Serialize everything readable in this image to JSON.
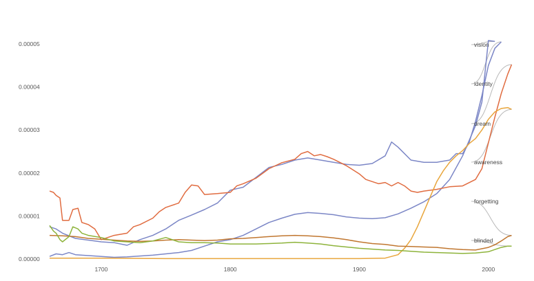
{
  "chart_data": {
    "type": "line",
    "title": "",
    "xlabel": "",
    "ylabel": "",
    "xlim": [
      1660,
      2030
    ],
    "ylim": [
      0,
      5e-05
    ],
    "x_ticks": [
      1700,
      1800,
      1900,
      2000
    ],
    "y_ticks": [
      0.0,
      1e-05,
      2e-05,
      3e-05,
      4e-05,
      5e-05
    ],
    "x_tick_labels": [
      "1700",
      "1800",
      "1900",
      "2000"
    ],
    "y_tick_labels": [
      "0.00000",
      "0.00001",
      "0.00002",
      "0.00003",
      "0.00004",
      "0.00005"
    ],
    "grid": false,
    "legend": "inline-right",
    "series": [
      {
        "name": "vision",
        "color": "#7b86c6",
        "points": [
          [
            1660,
            6e-07
          ],
          [
            1665,
            1.2e-06
          ],
          [
            1670,
            1e-06
          ],
          [
            1675,
            1.5e-06
          ],
          [
            1680,
            1e-06
          ],
          [
            1690,
            8e-07
          ],
          [
            1700,
            6e-07
          ],
          [
            1710,
            4e-07
          ],
          [
            1720,
            5e-07
          ],
          [
            1730,
            7e-07
          ],
          [
            1740,
            9e-07
          ],
          [
            1750,
            1.2e-06
          ],
          [
            1760,
            1.5e-06
          ],
          [
            1770,
            2e-06
          ],
          [
            1780,
            3e-06
          ],
          [
            1790,
            4e-06
          ],
          [
            1800,
            4.5e-06
          ],
          [
            1810,
            5.5e-06
          ],
          [
            1820,
            7e-06
          ],
          [
            1830,
            8.5e-06
          ],
          [
            1840,
            9.5e-06
          ],
          [
            1850,
            1.04e-05
          ],
          [
            1860,
            1.08e-05
          ],
          [
            1870,
            1.06e-05
          ],
          [
            1880,
            1.03e-05
          ],
          [
            1890,
            9.8e-06
          ],
          [
            1900,
            9.5e-06
          ],
          [
            1910,
            9.4e-06
          ],
          [
            1920,
            9.6e-06
          ],
          [
            1930,
            1.05e-05
          ],
          [
            1940,
            1.18e-05
          ],
          [
            1950,
            1.33e-05
          ],
          [
            1960,
            1.52e-05
          ],
          [
            1970,
            1.85e-05
          ],
          [
            1980,
            2.4e-05
          ],
          [
            1990,
            3.1e-05
          ],
          [
            1995,
            3.65e-05
          ],
          [
            2000,
            5.08e-05
          ],
          [
            2005,
            5.06e-05
          ]
        ]
      },
      {
        "name": "identity",
        "color": "#7b86c6",
        "points": [
          [
            1660,
            7.5e-06
          ],
          [
            1665,
            7e-06
          ],
          [
            1670,
            6e-06
          ],
          [
            1680,
            4.8e-06
          ],
          [
            1690,
            4.4e-06
          ],
          [
            1700,
            4e-06
          ],
          [
            1710,
            3.8e-06
          ],
          [
            1720,
            3.2e-06
          ],
          [
            1730,
            4.5e-06
          ],
          [
            1740,
            5.5e-06
          ],
          [
            1750,
            7e-06
          ],
          [
            1760,
            9e-06
          ],
          [
            1770,
            1.02e-05
          ],
          [
            1780,
            1.15e-05
          ],
          [
            1790,
            1.3e-05
          ],
          [
            1800,
            1.6e-05
          ],
          [
            1810,
            1.67e-05
          ],
          [
            1820,
            1.9e-05
          ],
          [
            1830,
            2.13e-05
          ],
          [
            1840,
            2.2e-05
          ],
          [
            1850,
            2.3e-05
          ],
          [
            1860,
            2.35e-05
          ],
          [
            1870,
            2.3e-05
          ],
          [
            1880,
            2.25e-05
          ],
          [
            1890,
            2.2e-05
          ],
          [
            1900,
            2.18e-05
          ],
          [
            1910,
            2.22e-05
          ],
          [
            1920,
            2.4e-05
          ],
          [
            1925,
            2.72e-05
          ],
          [
            1930,
            2.6e-05
          ],
          [
            1940,
            2.3e-05
          ],
          [
            1950,
            2.25e-05
          ],
          [
            1960,
            2.25e-05
          ],
          [
            1970,
            2.3e-05
          ],
          [
            1975,
            2.45e-05
          ],
          [
            1980,
            2.45e-05
          ],
          [
            1985,
            2.7e-05
          ],
          [
            1990,
            3.2e-05
          ],
          [
            1995,
            3.8e-05
          ],
          [
            2000,
            4.5e-05
          ],
          [
            2005,
            4.9e-05
          ],
          [
            2010,
            5.05e-05
          ]
        ]
      },
      {
        "name": "dream",
        "color": "#e06b3f",
        "points": [
          [
            1660,
            1.58e-05
          ],
          [
            1663,
            1.55e-05
          ],
          [
            1665,
            1.48e-05
          ],
          [
            1668,
            1.42e-05
          ],
          [
            1670,
            9e-06
          ],
          [
            1675,
            9e-06
          ],
          [
            1678,
            1.15e-05
          ],
          [
            1682,
            1.18e-05
          ],
          [
            1685,
            8.5e-06
          ],
          [
            1690,
            8e-06
          ],
          [
            1695,
            7e-06
          ],
          [
            1700,
            4.5e-06
          ],
          [
            1705,
            5e-06
          ],
          [
            1710,
            5.5e-06
          ],
          [
            1720,
            6e-06
          ],
          [
            1725,
            7.5e-06
          ],
          [
            1730,
            8e-06
          ],
          [
            1740,
            9.5e-06
          ],
          [
            1745,
            1.1e-05
          ],
          [
            1750,
            1.2e-05
          ],
          [
            1760,
            1.3e-05
          ],
          [
            1765,
            1.55e-05
          ],
          [
            1770,
            1.72e-05
          ],
          [
            1775,
            1.7e-05
          ],
          [
            1780,
            1.5e-05
          ],
          [
            1790,
            1.52e-05
          ],
          [
            1800,
            1.55e-05
          ],
          [
            1805,
            1.7e-05
          ],
          [
            1810,
            1.75e-05
          ],
          [
            1820,
            1.88e-05
          ],
          [
            1830,
            2.1e-05
          ],
          [
            1840,
            2.24e-05
          ],
          [
            1850,
            2.32e-05
          ],
          [
            1855,
            2.45e-05
          ],
          [
            1860,
            2.5e-05
          ],
          [
            1865,
            2.4e-05
          ],
          [
            1870,
            2.43e-05
          ],
          [
            1875,
            2.38e-05
          ],
          [
            1880,
            2.32e-05
          ],
          [
            1890,
            2.17e-05
          ],
          [
            1900,
            1.98e-05
          ],
          [
            1905,
            1.85e-05
          ],
          [
            1910,
            1.8e-05
          ],
          [
            1915,
            1.75e-05
          ],
          [
            1920,
            1.78e-05
          ],
          [
            1925,
            1.7e-05
          ],
          [
            1930,
            1.78e-05
          ],
          [
            1935,
            1.7e-05
          ],
          [
            1940,
            1.58e-05
          ],
          [
            1945,
            1.55e-05
          ],
          [
            1950,
            1.58e-05
          ],
          [
            1960,
            1.62e-05
          ],
          [
            1970,
            1.68e-05
          ],
          [
            1980,
            1.7e-05
          ],
          [
            1990,
            1.85e-05
          ],
          [
            1995,
            2.1e-05
          ],
          [
            2000,
            2.7e-05
          ],
          [
            2005,
            3.3e-05
          ],
          [
            2010,
            3.85e-05
          ],
          [
            2015,
            4.3e-05
          ],
          [
            2018,
            4.52e-05
          ]
        ]
      },
      {
        "name": "awareness",
        "color": "#e8a53b",
        "points": [
          [
            1660,
            2e-07
          ],
          [
            1700,
            2e-07
          ],
          [
            1750,
            1e-07
          ],
          [
            1800,
            1e-07
          ],
          [
            1850,
            1e-07
          ],
          [
            1900,
            1e-07
          ],
          [
            1920,
            2e-07
          ],
          [
            1930,
            1e-06
          ],
          [
            1935,
            2.5e-06
          ],
          [
            1940,
            4.5e-06
          ],
          [
            1945,
            7.5e-06
          ],
          [
            1950,
            1.1e-05
          ],
          [
            1955,
            1.45e-05
          ],
          [
            1960,
            1.8e-05
          ],
          [
            1965,
            2.05e-05
          ],
          [
            1970,
            2.25e-05
          ],
          [
            1975,
            2.4e-05
          ],
          [
            1980,
            2.52e-05
          ],
          [
            1985,
            2.68e-05
          ],
          [
            1990,
            2.8e-05
          ],
          [
            1995,
            3e-05
          ],
          [
            2000,
            3.25e-05
          ],
          [
            2005,
            3.42e-05
          ],
          [
            2010,
            3.5e-05
          ],
          [
            2015,
            3.52e-05
          ],
          [
            2018,
            3.48e-05
          ]
        ]
      },
      {
        "name": "forgetting",
        "color": "#c0762f",
        "points": [
          [
            1660,
            5.5e-06
          ],
          [
            1670,
            5.4e-06
          ],
          [
            1680,
            5.2e-06
          ],
          [
            1690,
            4.8e-06
          ],
          [
            1700,
            4.6e-06
          ],
          [
            1710,
            4.4e-06
          ],
          [
            1720,
            4.2e-06
          ],
          [
            1730,
            4.1e-06
          ],
          [
            1740,
            4.2e-06
          ],
          [
            1750,
            4.4e-06
          ],
          [
            1760,
            4.5e-06
          ],
          [
            1770,
            4.4e-06
          ],
          [
            1780,
            4.3e-06
          ],
          [
            1790,
            4.4e-06
          ],
          [
            1800,
            4.7e-06
          ],
          [
            1810,
            4.8e-06
          ],
          [
            1820,
            5e-06
          ],
          [
            1830,
            5.2e-06
          ],
          [
            1840,
            5.4e-06
          ],
          [
            1850,
            5.5e-06
          ],
          [
            1860,
            5.4e-06
          ],
          [
            1870,
            5.2e-06
          ],
          [
            1880,
            4.9e-06
          ],
          [
            1890,
            4.5e-06
          ],
          [
            1900,
            4e-06
          ],
          [
            1910,
            3.6e-06
          ],
          [
            1920,
            3.4e-06
          ],
          [
            1930,
            3e-06
          ],
          [
            1940,
            2.9e-06
          ],
          [
            1950,
            2.8e-06
          ],
          [
            1960,
            2.7e-06
          ],
          [
            1970,
            2.4e-06
          ],
          [
            1980,
            2.2e-06
          ],
          [
            1990,
            2.1e-06
          ],
          [
            2000,
            2.7e-06
          ],
          [
            2005,
            3.3e-06
          ],
          [
            2010,
            4.2e-06
          ],
          [
            2015,
            5.2e-06
          ],
          [
            2018,
            5.5e-06
          ]
        ]
      },
      {
        "name": "blinded",
        "color": "#8db33a",
        "points": [
          [
            1660,
            7.8e-06
          ],
          [
            1663,
            6.5e-06
          ],
          [
            1665,
            6e-06
          ],
          [
            1668,
            4.5e-06
          ],
          [
            1670,
            4e-06
          ],
          [
            1675,
            5.2e-06
          ],
          [
            1678,
            7.5e-06
          ],
          [
            1682,
            7e-06
          ],
          [
            1685,
            6e-06
          ],
          [
            1690,
            5.5e-06
          ],
          [
            1700,
            5e-06
          ],
          [
            1710,
            4.2e-06
          ],
          [
            1720,
            4e-06
          ],
          [
            1730,
            3.8e-06
          ],
          [
            1740,
            4.2e-06
          ],
          [
            1750,
            5e-06
          ],
          [
            1760,
            4e-06
          ],
          [
            1770,
            3.8e-06
          ],
          [
            1780,
            3.8e-06
          ],
          [
            1790,
            3.7e-06
          ],
          [
            1800,
            3.5e-06
          ],
          [
            1810,
            3.5e-06
          ],
          [
            1820,
            3.5e-06
          ],
          [
            1830,
            3.6e-06
          ],
          [
            1840,
            3.7e-06
          ],
          [
            1850,
            3.9e-06
          ],
          [
            1860,
            3.7e-06
          ],
          [
            1870,
            3.5e-06
          ],
          [
            1880,
            3.1e-06
          ],
          [
            1890,
            2.8e-06
          ],
          [
            1900,
            2.5e-06
          ],
          [
            1910,
            2.3e-06
          ],
          [
            1920,
            2.1e-06
          ],
          [
            1930,
            2e-06
          ],
          [
            1940,
            1.8e-06
          ],
          [
            1950,
            1.6e-06
          ],
          [
            1960,
            1.5e-06
          ],
          [
            1970,
            1.4e-06
          ],
          [
            1980,
            1.3e-06
          ],
          [
            1990,
            1.4e-06
          ],
          [
            2000,
            1.7e-06
          ],
          [
            2005,
            2.2e-06
          ],
          [
            2010,
            2.7e-06
          ],
          [
            2015,
            3e-06
          ],
          [
            2018,
            3e-06
          ]
        ]
      }
    ],
    "labels": [
      "vision",
      "identity",
      "dream",
      "awareness",
      "forgetting",
      "blinded"
    ]
  }
}
